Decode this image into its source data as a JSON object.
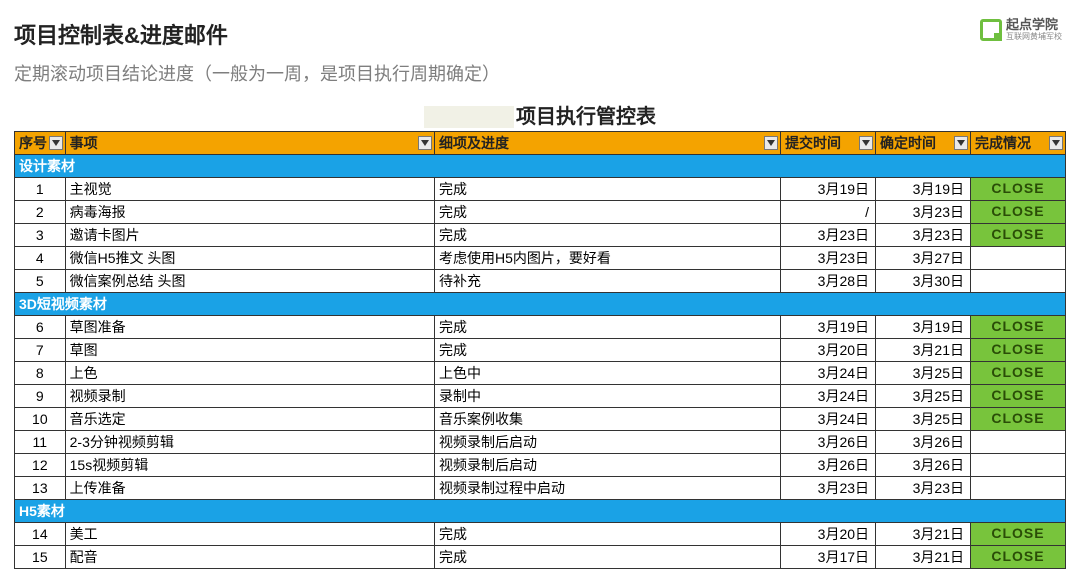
{
  "logo": {
    "brand": "起点学院",
    "tagline": "互联网黄埔军校"
  },
  "heading": "项目控制表&进度邮件",
  "subheading": "定期滚动项目结论进度（一般为一周，是项目执行周期确定）",
  "table_title_suffix": "项目执行管控表",
  "colors": {
    "header_bg": "#f4a300",
    "section_bg": "#1aa2e6",
    "close_bg": "#78c43c",
    "border": "#333333",
    "subtitle": "#7e7e7e"
  },
  "columns": [
    {
      "key": "seq",
      "label": "序号"
    },
    {
      "key": "item",
      "label": "事项"
    },
    {
      "key": "detail",
      "label": "细项及进度"
    },
    {
      "key": "submit",
      "label": "提交时间"
    },
    {
      "key": "confirm",
      "label": "确定时间"
    },
    {
      "key": "status",
      "label": "完成情况"
    }
  ],
  "sections": [
    {
      "title": "设计素材",
      "rows": [
        {
          "seq": "1",
          "item": "主视觉",
          "detail": "完成",
          "submit": "3月19日",
          "confirm": "3月19日",
          "status": "CLOSE"
        },
        {
          "seq": "2",
          "item": "病毒海报",
          "detail": "完成",
          "submit": "/",
          "confirm": "3月23日",
          "status": "CLOSE"
        },
        {
          "seq": "3",
          "item": "邀请卡图片",
          "detail": "完成",
          "submit": "3月23日",
          "confirm": "3月23日",
          "status": "CLOSE"
        },
        {
          "seq": "4",
          "item": "微信H5推文 头图",
          "detail": "考虑使用H5内图片，要好看",
          "submit": "3月23日",
          "confirm": "3月27日",
          "status": ""
        },
        {
          "seq": "5",
          "item": "微信案例总结 头图",
          "detail": "待补充",
          "submit": "3月28日",
          "confirm": "3月30日",
          "status": ""
        }
      ]
    },
    {
      "title": "3D短视频素材",
      "rows": [
        {
          "seq": "6",
          "item": "草图准备",
          "detail": "完成",
          "submit": "3月19日",
          "confirm": "3月19日",
          "status": "CLOSE"
        },
        {
          "seq": "7",
          "item": "草图",
          "detail": "完成",
          "submit": "3月20日",
          "confirm": "3月21日",
          "status": "CLOSE"
        },
        {
          "seq": "8",
          "item": "上色",
          "detail": "上色中",
          "submit": "3月24日",
          "confirm": "3月25日",
          "status": "CLOSE"
        },
        {
          "seq": "9",
          "item": "视频录制",
          "detail": "录制中",
          "submit": "3月24日",
          "confirm": "3月25日",
          "status": "CLOSE"
        },
        {
          "seq": "10",
          "item": "音乐选定",
          "detail": "音乐案例收集",
          "submit": "3月24日",
          "confirm": "3月25日",
          "status": "CLOSE"
        },
        {
          "seq": "11",
          "item": "2-3分钟视频剪辑",
          "detail": "视频录制后启动",
          "submit": "3月26日",
          "confirm": "3月26日",
          "status": ""
        },
        {
          "seq": "12",
          "item": "15s视频剪辑",
          "detail": "视频录制后启动",
          "submit": "3月26日",
          "confirm": "3月26日",
          "status": ""
        },
        {
          "seq": "13",
          "item": "上传准备",
          "detail": "视频录制过程中启动",
          "submit": "3月23日",
          "confirm": "3月23日",
          "status": ""
        }
      ]
    },
    {
      "title": "H5素材",
      "rows": [
        {
          "seq": "14",
          "item": "美工",
          "detail": "完成",
          "submit": "3月20日",
          "confirm": "3月21日",
          "status": "CLOSE"
        },
        {
          "seq": "15",
          "item": "配音",
          "detail": "完成",
          "submit": "3月17日",
          "confirm": "3月21日",
          "status": "CLOSE"
        }
      ]
    }
  ]
}
